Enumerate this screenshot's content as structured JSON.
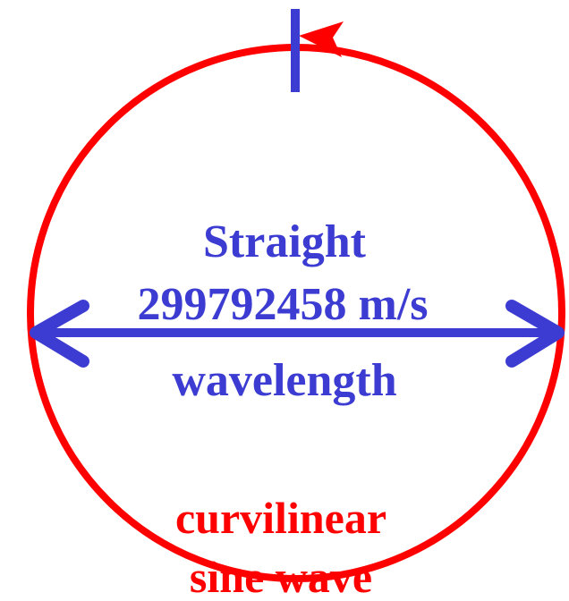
{
  "labels": {
    "straight": "Straight",
    "speed": "299792458 m/s",
    "wavelength": "wavelength",
    "curvilinear": "curvilinear",
    "sine_wave": "sine wave"
  },
  "colors": {
    "circle": "#ff0000",
    "arrow": "#3c3cd2",
    "circle_text": "#ff0000",
    "arrow_text": "#3c3cd2"
  }
}
